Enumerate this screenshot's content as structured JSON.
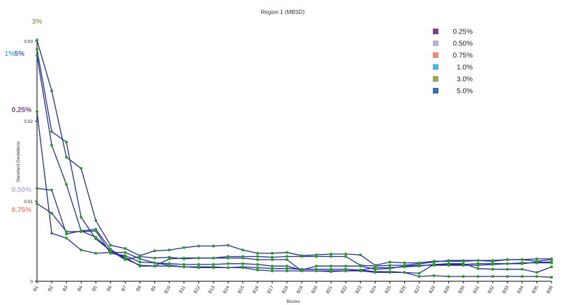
{
  "chart_data": {
    "type": "line",
    "title": "Region 1 (MBSD)",
    "xlabel": "Blocks",
    "ylabel": "Standard Deviations",
    "ylim": [
      0,
      0.03
    ],
    "yticks": [
      {
        "value": 0,
        "label": "0"
      },
      {
        "value": 0.01,
        "label": "0.01"
      },
      {
        "value": 0.02,
        "label": "0.02"
      },
      {
        "value": 0.03,
        "label": "0.03"
      }
    ],
    "grid": false,
    "legend_position": "top-right",
    "line_color": "#1f2f8f",
    "marker_color": "#2e9a2a",
    "categories": [
      "B1",
      "B2",
      "B3",
      "B4",
      "B5",
      "B6",
      "B7",
      "B8",
      "B9",
      "B10",
      "B11",
      "B12",
      "B13",
      "B14",
      "B15",
      "B16",
      "B17",
      "B18",
      "B19",
      "B20",
      "B21",
      "B22",
      "B23",
      "B24",
      "B25",
      "B26",
      "B27",
      "B28",
      "B29",
      "B30",
      "B31",
      "B32",
      "B33",
      "B34",
      "B35",
      "B36"
    ],
    "legend": [
      {
        "label": "0.25%",
        "color": "#7b3f8c"
      },
      {
        "label": "0.50%",
        "color": "#b8b2d6"
      },
      {
        "label": "0.75%",
        "color": "#ef8a74"
      },
      {
        "label": "1.0%",
        "color": "#4fb6d0"
      },
      {
        "label": "3.0%",
        "color": "#9aa85a"
      },
      {
        "label": "5.0%",
        "color": "#3f6ab3"
      }
    ],
    "annotations": [
      {
        "text": "3%",
        "color": "#9aa85a",
        "x": "B1",
        "y": 0.0313
      },
      {
        "text": "1%",
        "color": "#4fb6d0",
        "x": "B1",
        "y": 0.0285
      },
      {
        "text": "5%",
        "color": "#3f6ab3",
        "x": "B1",
        "y": 0.0285
      },
      {
        "text": "0.25%",
        "color": "#7b3f8c",
        "x": "B1",
        "y": 0.0215
      },
      {
        "text": "0.50%",
        "color": "#b8b2d6",
        "x": "B1",
        "y": 0.0115
      },
      {
        "text": "0.75%",
        "color": "#ef8a74",
        "x": "B1",
        "y": 0.009
      }
    ],
    "series": [
      {
        "values": [
          0.0301,
          0.0238,
          0.0155,
          0.0141,
          0.0076,
          0.0045,
          0.0041,
          0.0032,
          0.0038,
          0.0039,
          0.0042,
          0.0044,
          0.0044,
          0.0045,
          0.0039,
          0.0035,
          0.0035,
          0.0036,
          0.0032,
          0.0033,
          0.0034,
          0.0034,
          0.0033,
          0.002,
          0.0024,
          0.0023,
          0.0023,
          0.0025,
          0.0025,
          0.0025,
          0.0026,
          0.0025,
          0.0027,
          0.0027,
          0.0028,
          0.0028
        ]
      },
      {
        "values": [
          0.029,
          0.0187,
          0.0174,
          0.008,
          0.0053,
          0.0038,
          0.0027,
          0.0031,
          0.0029,
          0.003,
          0.0028,
          0.0029,
          0.0029,
          0.0031,
          0.0031,
          0.0031,
          0.003,
          0.0031,
          0.0031,
          0.0031,
          0.0031,
          0.0031,
          0.002,
          0.0019,
          0.002,
          0.002,
          0.0022,
          0.0024,
          0.0026,
          0.0026,
          0.0026,
          0.0026,
          0.0027,
          0.0027,
          0.0025,
          0.0027
        ]
      },
      {
        "values": [
          0.0282,
          0.017,
          0.0121,
          0.0063,
          0.0065,
          0.004,
          0.0028,
          0.002,
          0.0019,
          0.0028,
          0.0029,
          0.0029,
          0.0029,
          0.0029,
          0.0029,
          0.0027,
          0.0027,
          0.0027,
          0.0013,
          0.0013,
          0.0012,
          0.0013,
          0.0014,
          0.0012,
          0.0012,
          0.0011,
          0.0006,
          0.0007,
          0.0006,
          0.0006,
          0.0006,
          0.0006,
          0.0006,
          0.0006,
          0.0006,
          0.0005
        ]
      },
      {
        "values": [
          0.0212,
          0.006,
          0.0054,
          0.0039,
          0.0035,
          0.0036,
          0.0036,
          0.0028,
          0.0023,
          0.0022,
          0.0021,
          0.0021,
          0.0021,
          0.0022,
          0.0022,
          0.0021,
          0.0019,
          0.0019,
          0.0014,
          0.0019,
          0.0019,
          0.0019,
          0.0019,
          0.0015,
          0.0016,
          0.0019,
          0.002,
          0.002,
          0.002,
          0.002,
          0.002,
          0.0021,
          0.0022,
          0.0022,
          0.0024,
          0.0024
        ]
      },
      {
        "values": [
          0.0116,
          0.0114,
          0.0059,
          0.0063,
          0.0055,
          0.0038,
          0.003,
          0.0019,
          0.0019,
          0.0019,
          0.0018,
          0.0018,
          0.0018,
          0.0017,
          0.0017,
          0.0014,
          0.0013,
          0.0013,
          0.0013,
          0.0013,
          0.0013,
          0.0013,
          0.0013,
          0.0011,
          0.0011,
          0.0011,
          0.001,
          0.0021,
          0.0022,
          0.0022,
          0.0016,
          0.0015,
          0.0015,
          0.0015,
          0.0011,
          0.0018
        ]
      },
      {
        "values": [
          0.0097,
          0.0085,
          0.0062,
          0.0062,
          0.0063,
          0.0035,
          0.0032,
          0.0024,
          0.0023,
          0.002,
          0.0018,
          0.0017,
          0.0017,
          0.0017,
          0.0018,
          0.0017,
          0.0016,
          0.0016,
          0.0015,
          0.0015,
          0.0015,
          0.0015,
          0.0014,
          0.0017,
          0.0017,
          0.0018,
          0.0019,
          0.0021,
          0.0021,
          0.0021,
          0.0022,
          0.0022,
          0.0022,
          0.0023,
          0.0023,
          0.0023
        ]
      }
    ]
  }
}
